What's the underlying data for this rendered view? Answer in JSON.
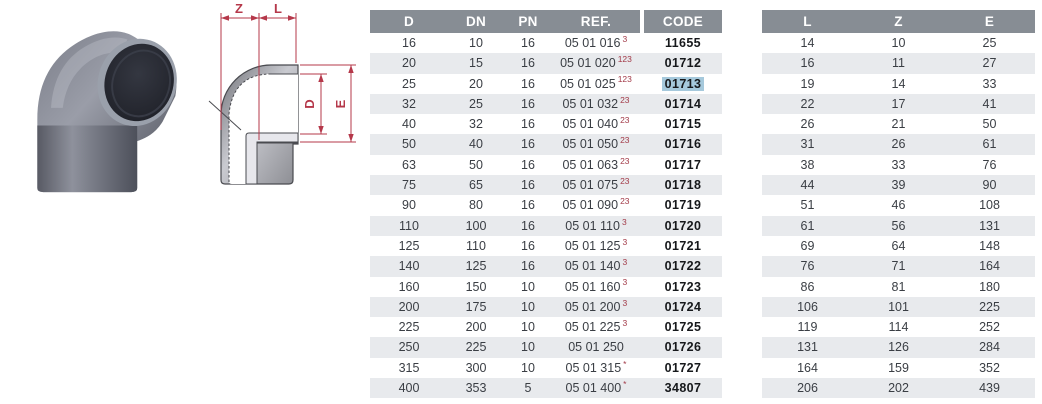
{
  "drawing": {
    "labels": {
      "z": "Z",
      "l": "L",
      "d": "D",
      "e": "E"
    }
  },
  "main_table": {
    "headers": [
      "D",
      "DN",
      "PN",
      "REF.",
      "CODE"
    ],
    "rows": [
      {
        "d": "16",
        "dn": "10",
        "pn": "16",
        "ref": "05 01 016",
        "sup": "3",
        "code": "11655",
        "highlighted": false
      },
      {
        "d": "20",
        "dn": "15",
        "pn": "16",
        "ref": "05 01 020",
        "sup": "123",
        "code": "01712",
        "highlighted": false
      },
      {
        "d": "25",
        "dn": "20",
        "pn": "16",
        "ref": "05 01 025",
        "sup": "123",
        "code": "01713",
        "highlighted": true
      },
      {
        "d": "32",
        "dn": "25",
        "pn": "16",
        "ref": "05 01 032",
        "sup": "23",
        "code": "01714",
        "highlighted": false
      },
      {
        "d": "40",
        "dn": "32",
        "pn": "16",
        "ref": "05 01 040",
        "sup": "23",
        "code": "01715",
        "highlighted": false
      },
      {
        "d": "50",
        "dn": "40",
        "pn": "16",
        "ref": "05 01 050",
        "sup": "23",
        "code": "01716",
        "highlighted": false
      },
      {
        "d": "63",
        "dn": "50",
        "pn": "16",
        "ref": "05 01 063",
        "sup": "23",
        "code": "01717",
        "highlighted": false
      },
      {
        "d": "75",
        "dn": "65",
        "pn": "16",
        "ref": "05 01 075",
        "sup": "23",
        "code": "01718",
        "highlighted": false
      },
      {
        "d": "90",
        "dn": "80",
        "pn": "16",
        "ref": "05 01 090",
        "sup": "23",
        "code": "01719",
        "highlighted": false
      },
      {
        "d": "110",
        "dn": "100",
        "pn": "16",
        "ref": "05 01 110",
        "sup": "3",
        "code": "01720",
        "highlighted": false
      },
      {
        "d": "125",
        "dn": "110",
        "pn": "16",
        "ref": "05 01 125",
        "sup": "3",
        "code": "01721",
        "highlighted": false
      },
      {
        "d": "140",
        "dn": "125",
        "pn": "16",
        "ref": "05 01 140",
        "sup": "3",
        "code": "01722",
        "highlighted": false
      },
      {
        "d": "160",
        "dn": "150",
        "pn": "10",
        "ref": "05 01 160",
        "sup": "3",
        "code": "01723",
        "highlighted": false
      },
      {
        "d": "200",
        "dn": "175",
        "pn": "10",
        "ref": "05 01 200",
        "sup": "3",
        "code": "01724",
        "highlighted": false
      },
      {
        "d": "225",
        "dn": "200",
        "pn": "10",
        "ref": "05 01 225",
        "sup": "3",
        "code": "01725",
        "highlighted": false
      },
      {
        "d": "250",
        "dn": "225",
        "pn": "10",
        "ref": "05 01 250",
        "sup": "",
        "code": "01726",
        "highlighted": false
      },
      {
        "d": "315",
        "dn": "300",
        "pn": "10",
        "ref": "05 01 315",
        "sup": "*",
        "code": "01727",
        "highlighted": false
      },
      {
        "d": "400",
        "dn": "353",
        "pn": "5",
        "ref": "05 01 400",
        "sup": "*",
        "code": "34807",
        "highlighted": false
      }
    ]
  },
  "dims_table": {
    "headers": [
      "L",
      "Z",
      "E"
    ],
    "rows": [
      [
        "14",
        "10",
        "25"
      ],
      [
        "16",
        "11",
        "27"
      ],
      [
        "19",
        "14",
        "33"
      ],
      [
        "22",
        "17",
        "41"
      ],
      [
        "26",
        "21",
        "50"
      ],
      [
        "31",
        "26",
        "61"
      ],
      [
        "38",
        "33",
        "76"
      ],
      [
        "44",
        "39",
        "90"
      ],
      [
        "51",
        "46",
        "108"
      ],
      [
        "61",
        "56",
        "131"
      ],
      [
        "69",
        "64",
        "148"
      ],
      [
        "76",
        "71",
        "164"
      ],
      [
        "86",
        "81",
        "180"
      ],
      [
        "106",
        "101",
        "225"
      ],
      [
        "119",
        "114",
        "252"
      ],
      [
        "131",
        "126",
        "284"
      ],
      [
        "164",
        "159",
        "352"
      ],
      [
        "206",
        "202",
        "439"
      ]
    ]
  },
  "colors": {
    "header_bg": "#878d94",
    "row_alt": "#e8eaed",
    "highlight": "#a6c9dc",
    "ref_note": "#a23a48",
    "dim_line": "#b5384a"
  }
}
